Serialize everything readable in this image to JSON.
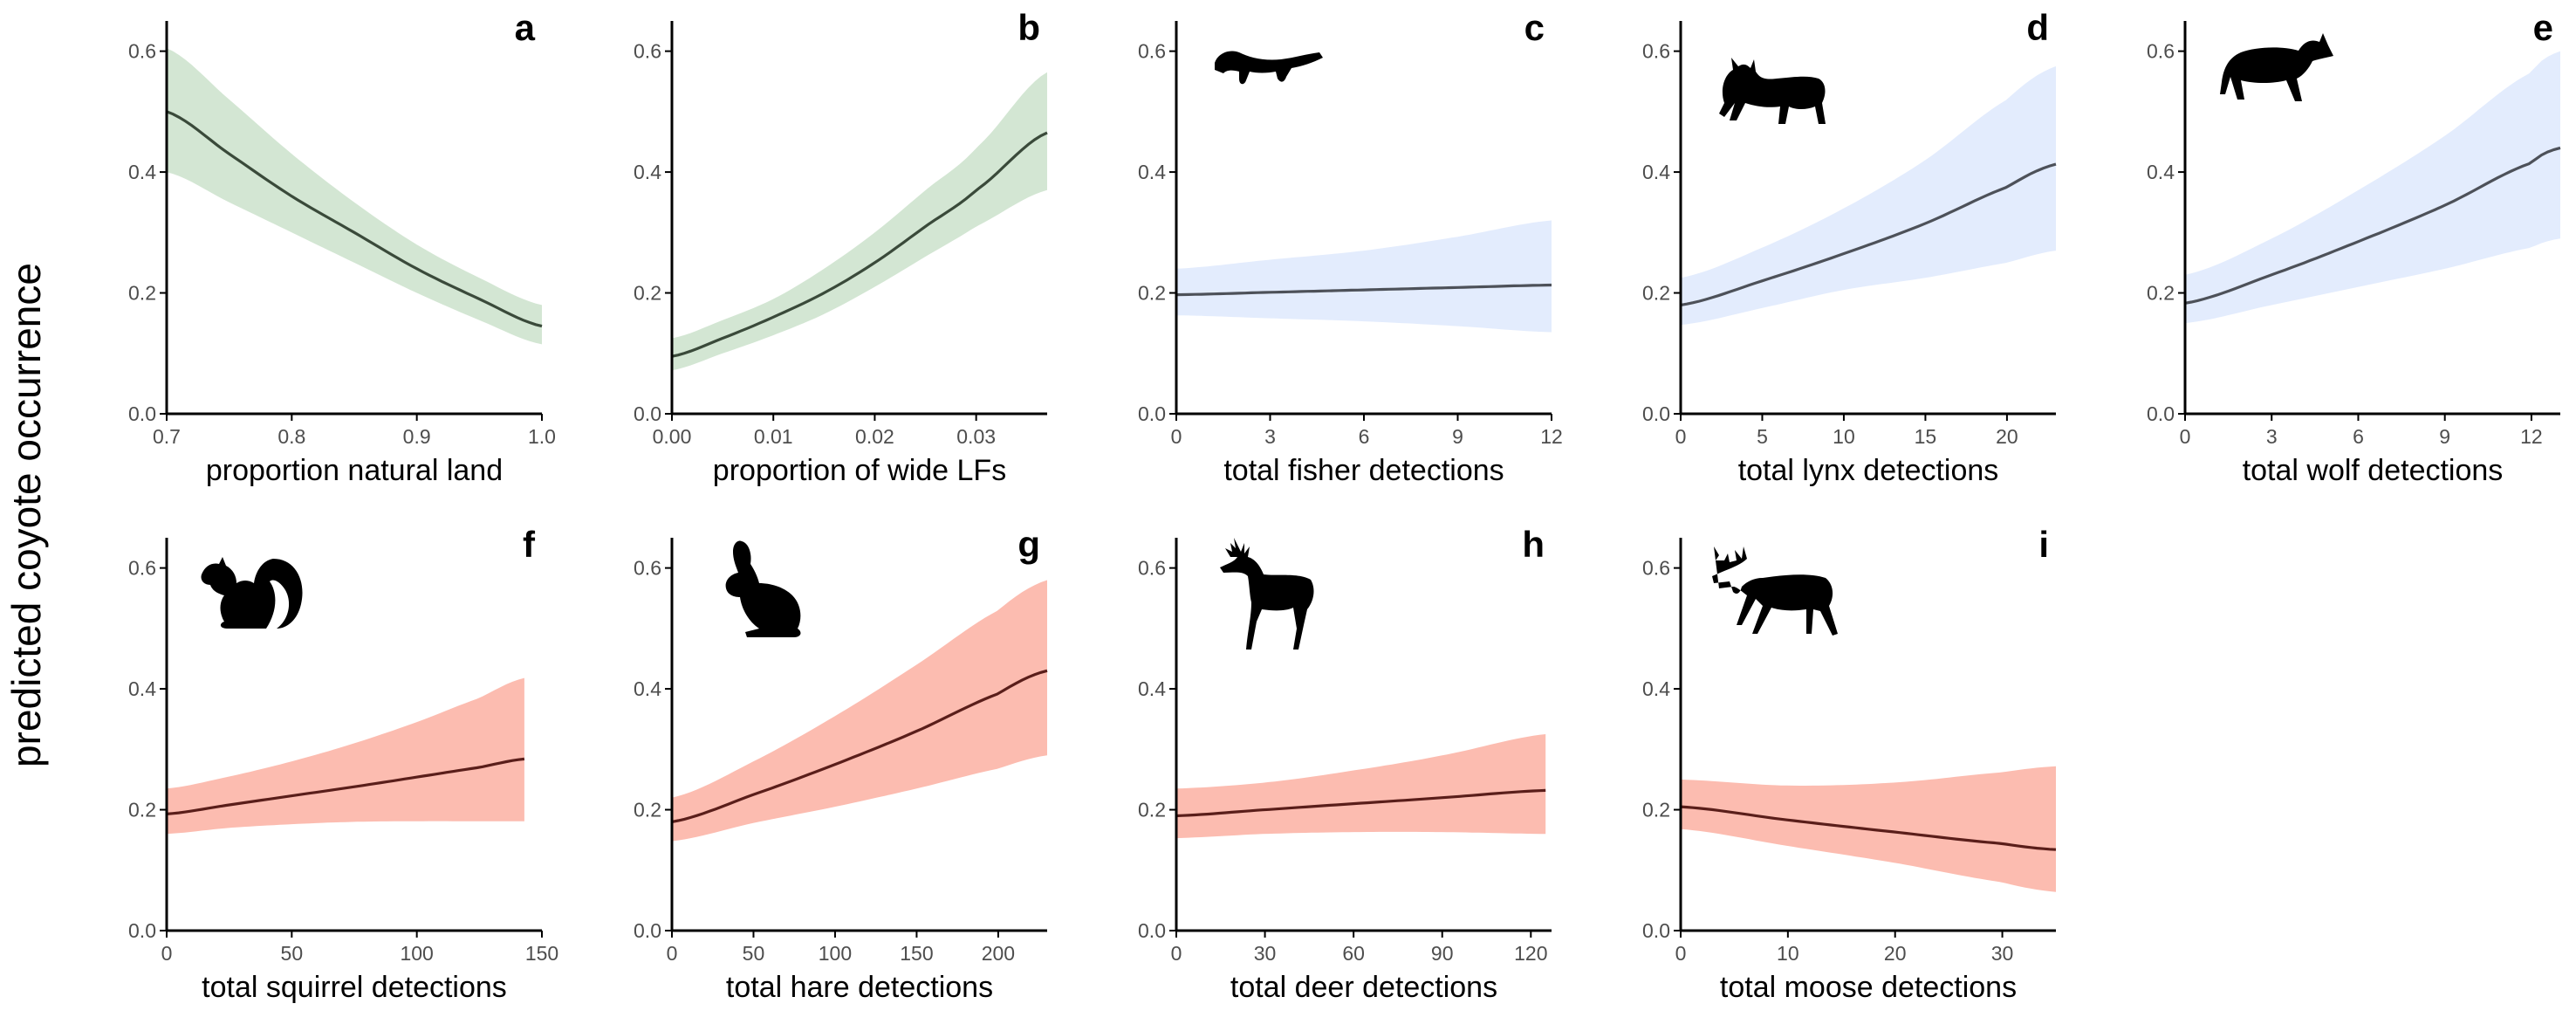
{
  "figure": {
    "ylabel": "predicted coyote occurrence"
  },
  "colors": {
    "green_band": "#d3e6d3",
    "green_line": "#3a4a3a",
    "blue_band": "#e3ecfd",
    "blue_line": "#4d5159",
    "red_band": "#fcbcb0",
    "red_line": "#5a1e1a",
    "axis": "#000000",
    "tick_text": "#4d4d4d"
  },
  "chart_data": [
    {
      "panel": "a",
      "type": "area",
      "color_group": "green",
      "icon": "",
      "xlabel": "proportion natural land",
      "xlim": [
        0.7,
        1.0
      ],
      "ylim": [
        0,
        0.65
      ],
      "xticks": [
        "0.7",
        "0.8",
        "0.9",
        "1.0"
      ],
      "yticks": [
        "0.0",
        "0.2",
        "0.4",
        "0.6"
      ],
      "x": [
        0.7,
        0.75,
        0.8,
        0.85,
        0.9,
        0.95,
        1.0
      ],
      "fit": [
        0.5,
        0.43,
        0.36,
        0.3,
        0.24,
        0.19,
        0.145
      ],
      "lower": [
        0.4,
        0.35,
        0.3,
        0.25,
        0.2,
        0.155,
        0.115
      ],
      "upper": [
        0.605,
        0.52,
        0.43,
        0.35,
        0.28,
        0.225,
        0.18
      ]
    },
    {
      "panel": "b",
      "type": "area",
      "color_group": "green",
      "icon": "",
      "xlabel": "proportion of wide LFs",
      "xlim": [
        0,
        0.037
      ],
      "ylim": [
        0,
        0.65
      ],
      "xticks": [
        "0.00",
        "0.01",
        "0.02",
        "0.03"
      ],
      "yticks": [
        "0.0",
        "0.2",
        "0.4",
        "0.6"
      ],
      "x": [
        0,
        0.005,
        0.01,
        0.015,
        0.02,
        0.025,
        0.03,
        0.037
      ],
      "fit": [
        0.095,
        0.125,
        0.16,
        0.2,
        0.25,
        0.31,
        0.37,
        0.465
      ],
      "lower": [
        0.072,
        0.1,
        0.13,
        0.165,
        0.21,
        0.26,
        0.31,
        0.37
      ],
      "upper": [
        0.125,
        0.155,
        0.19,
        0.24,
        0.3,
        0.37,
        0.44,
        0.565
      ]
    },
    {
      "panel": "c",
      "type": "area",
      "color_group": "blue",
      "icon": "fisher-icon",
      "xlabel": "total fisher detections",
      "xlim": [
        0,
        12
      ],
      "ylim": [
        0,
        0.65
      ],
      "xticks": [
        "0",
        "3",
        "6",
        "9",
        "12"
      ],
      "yticks": [
        "0.0",
        "0.2",
        "0.4",
        "0.6"
      ],
      "x": [
        0,
        3,
        6,
        9,
        12
      ],
      "fit": [
        0.197,
        0.201,
        0.205,
        0.209,
        0.213
      ],
      "lower": [
        0.163,
        0.158,
        0.153,
        0.145,
        0.135
      ],
      "upper": [
        0.24,
        0.255,
        0.27,
        0.293,
        0.32
      ]
    },
    {
      "panel": "d",
      "type": "area",
      "color_group": "blue",
      "icon": "lynx-icon",
      "xlabel": "total lynx detections",
      "xlim": [
        0,
        23
      ],
      "ylim": [
        0,
        0.65
      ],
      "xticks": [
        "0",
        "5",
        "10",
        "15",
        "20"
      ],
      "yticks": [
        "0.0",
        "0.2",
        "0.4",
        "0.6"
      ],
      "x": [
        0,
        5,
        10,
        15,
        20,
        23
      ],
      "fit": [
        0.18,
        0.22,
        0.265,
        0.315,
        0.375,
        0.413
      ],
      "lower": [
        0.147,
        0.175,
        0.205,
        0.225,
        0.25,
        0.27
      ],
      "upper": [
        0.225,
        0.275,
        0.34,
        0.42,
        0.52,
        0.575
      ]
    },
    {
      "panel": "e",
      "type": "area",
      "color_group": "blue",
      "icon": "wolf-icon",
      "xlabel": "total wolf detections",
      "xlim": [
        0,
        13
      ],
      "ylim": [
        0,
        0.65
      ],
      "xticks": [
        "0",
        "3",
        "6",
        "9",
        "12"
      ],
      "yticks": [
        "0.0",
        "0.2",
        "0.4",
        "0.6"
      ],
      "x": [
        0,
        3,
        6,
        9,
        12,
        13
      ],
      "fit": [
        0.183,
        0.23,
        0.285,
        0.345,
        0.415,
        0.44
      ],
      "lower": [
        0.15,
        0.18,
        0.21,
        0.24,
        0.275,
        0.29
      ],
      "upper": [
        0.23,
        0.29,
        0.37,
        0.46,
        0.565,
        0.6
      ]
    },
    {
      "panel": "f",
      "type": "area",
      "color_group": "red",
      "icon": "squirrel-icon",
      "xlabel": "total squirrel detections",
      "xlim": [
        0,
        150
      ],
      "ylim": [
        0,
        0.65
      ],
      "xticks": [
        "0",
        "50",
        "100",
        "150"
      ],
      "yticks": [
        "0.0",
        "0.2",
        "0.4",
        "0.6"
      ],
      "x": [
        0,
        25,
        50,
        75,
        100,
        125,
        143
      ],
      "fit": [
        0.193,
        0.208,
        0.223,
        0.238,
        0.254,
        0.27,
        0.284
      ],
      "lower": [
        0.16,
        0.17,
        0.176,
        0.18,
        0.181,
        0.181,
        0.181
      ],
      "upper": [
        0.235,
        0.255,
        0.28,
        0.31,
        0.345,
        0.385,
        0.418
      ]
    },
    {
      "panel": "g",
      "type": "area",
      "color_group": "red",
      "icon": "hare-icon",
      "xlabel": "total hare detections",
      "xlim": [
        0,
        230
      ],
      "ylim": [
        0,
        0.65
      ],
      "xticks": [
        "0",
        "50",
        "100",
        "150",
        "200"
      ],
      "yticks": [
        "0.0",
        "0.2",
        "0.4",
        "0.6"
      ],
      "x": [
        0,
        50,
        100,
        150,
        200,
        230
      ],
      "fit": [
        0.18,
        0.225,
        0.275,
        0.33,
        0.392,
        0.43
      ],
      "lower": [
        0.148,
        0.178,
        0.205,
        0.235,
        0.268,
        0.29
      ],
      "upper": [
        0.22,
        0.28,
        0.355,
        0.44,
        0.53,
        0.58
      ]
    },
    {
      "panel": "h",
      "type": "area",
      "color_group": "red",
      "icon": "deer-icon",
      "xlabel": "total deer detections",
      "xlim": [
        0,
        127
      ],
      "ylim": [
        0,
        0.65
      ],
      "xticks": [
        "0",
        "30",
        "60",
        "90",
        "120"
      ],
      "yticks": [
        "0.0",
        "0.2",
        "0.4",
        "0.6"
      ],
      "x": [
        0,
        30,
        60,
        90,
        125
      ],
      "fit": [
        0.19,
        0.2,
        0.21,
        0.22,
        0.232
      ],
      "lower": [
        0.153,
        0.16,
        0.163,
        0.163,
        0.16
      ],
      "upper": [
        0.235,
        0.245,
        0.265,
        0.29,
        0.325
      ]
    },
    {
      "panel": "i",
      "type": "area",
      "color_group": "red",
      "icon": "moose-icon",
      "xlabel": "total moose detections",
      "xlim": [
        0,
        35
      ],
      "ylim": [
        0,
        0.65
      ],
      "xticks": [
        "0",
        "10",
        "20",
        "30"
      ],
      "yticks": [
        "0.0",
        "0.2",
        "0.4",
        "0.6"
      ],
      "x": [
        0,
        10,
        20,
        30,
        35
      ],
      "fit": [
        0.205,
        0.183,
        0.163,
        0.144,
        0.134
      ],
      "lower": [
        0.168,
        0.14,
        0.112,
        0.08,
        0.064
      ],
      "upper": [
        0.25,
        0.24,
        0.245,
        0.262,
        0.272
      ]
    }
  ]
}
